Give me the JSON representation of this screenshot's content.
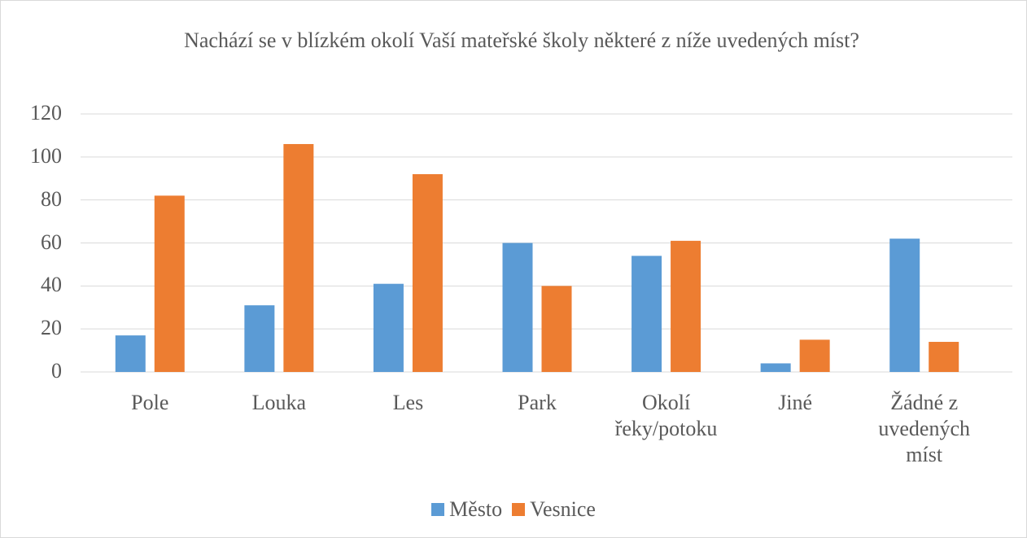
{
  "chart_data": {
    "type": "bar",
    "title": "Nachází se v blízkém okolí Vaší mateřské školy některé z níže uvedených míst?",
    "categories": [
      "Pole",
      "Louka",
      "Les",
      "Park",
      "Okolí řeky/potoku",
      "Jiné",
      "Žádné z uvedených míst"
    ],
    "series": [
      {
        "name": "Město",
        "color": "#5b9bd5",
        "values": [
          17,
          31,
          41,
          60,
          54,
          4,
          62
        ]
      },
      {
        "name": "Vesnice",
        "color": "#ed7d31",
        "values": [
          82,
          106,
          92,
          40,
          61,
          15,
          14
        ]
      }
    ],
    "ylim": [
      0,
      120
    ],
    "yticks": [
      0,
      20,
      40,
      60,
      80,
      100,
      120
    ],
    "grid": true,
    "legend": "bottom"
  }
}
